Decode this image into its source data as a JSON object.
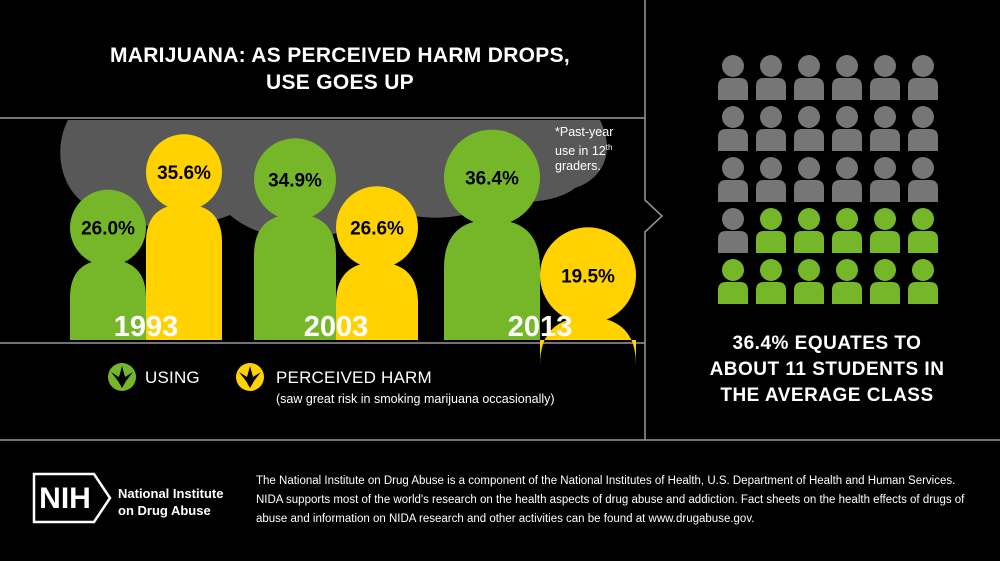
{
  "title_line1": "MARIJUANA: AS PERCEIVED HARM DROPS,",
  "title_line2": "USE GOES UP",
  "footnote": {
    "line1": "*Past-year",
    "line2": "use in 12",
    "sup": "th",
    "line3": "graders."
  },
  "chart_data": {
    "type": "bar",
    "title": "MARIJUANA: AS PERCEIVED HARM DROPS, USE GOES UP",
    "categories": [
      "1993",
      "2003",
      "2013"
    ],
    "series": [
      {
        "name": "USING",
        "color": "#76b72a",
        "values": [
          26.0,
          34.9,
          36.4
        ],
        "labels": [
          "26.0%",
          "34.9%",
          "36.4%"
        ]
      },
      {
        "name": "PERCEIVED HARM",
        "color": "#ffd200",
        "values": [
          35.6,
          26.6,
          19.5
        ],
        "labels": [
          "35.6%",
          "26.6%",
          "19.5%"
        ]
      }
    ],
    "ylim": [
      0,
      40
    ],
    "grid": false,
    "legend": "bottom-left"
  },
  "legend": {
    "using_label": "USING",
    "harm_label": "PERCEIVED HARM",
    "harm_note": "(saw great risk in smoking marijuana occasionally)"
  },
  "class_graphic": {
    "total": 30,
    "highlighted": 11,
    "colors": {
      "gray": "#767676",
      "green": "#76b72a"
    },
    "caption_lines": [
      "36.4% EQUATES TO",
      "ABOUT 11 STUDENTS IN",
      "THE AVERAGE CLASS"
    ]
  },
  "footer": {
    "logo_text": "NIH",
    "org_line1": "National Institute",
    "org_line2": "on Drug Abuse",
    "text": "The National Institute on Drug Abuse is a component of the National Institutes of Health, U.S. Department of Health and Human Services. NIDA supports most of the world's research on the health aspects of drug abuse and addiction. Fact sheets on the health effects of drugs of abuse and information on NIDA research and other activities can be found at www.drugabuse.gov."
  }
}
